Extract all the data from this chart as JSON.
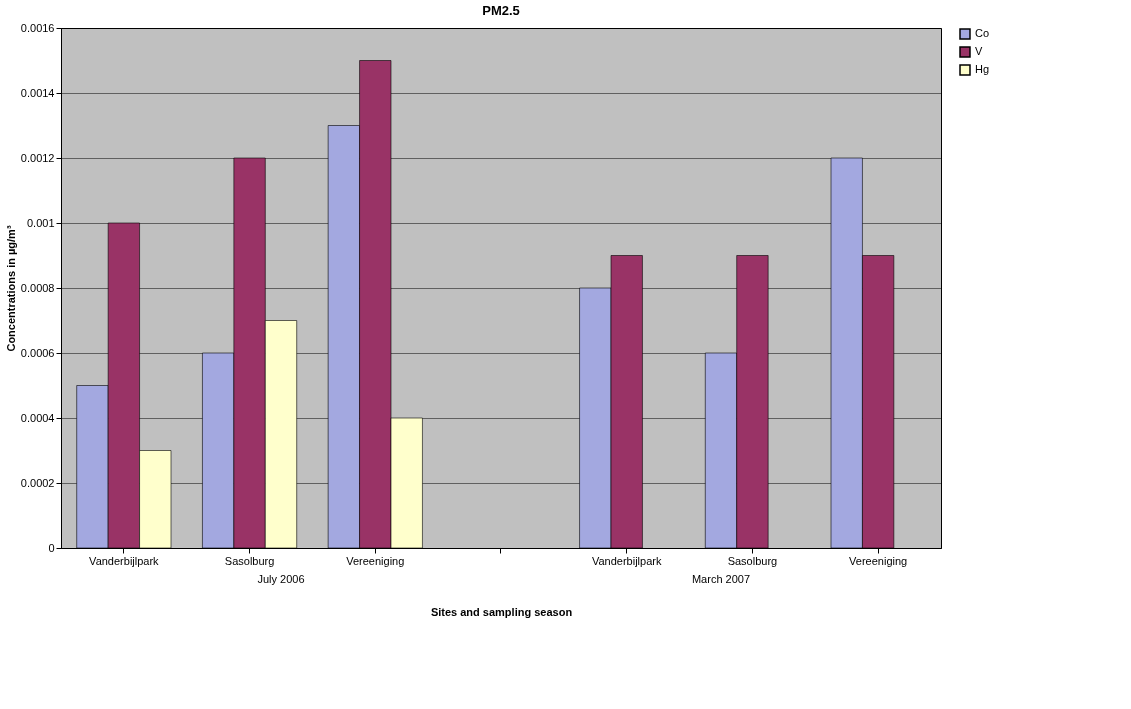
{
  "chart_data": {
    "type": "bar",
    "title": "PM2.5",
    "xlabel": "Sites and sampling season",
    "ylabel": "Concentrations in µg/m³",
    "categories": [
      "Vanderbijlpark",
      "Sasolburg",
      "Vereeniging",
      null,
      "Vanderbijlpark",
      "Sasolburg",
      "Vereeniging"
    ],
    "series": [
      {
        "name": "Co",
        "color": "#a3a8e0",
        "values": [
          0.0005,
          0.0006,
          0.0013,
          null,
          0.0008,
          0.0006,
          0.0012
        ]
      },
      {
        "name": "V",
        "color": "#993366",
        "values": [
          0.001,
          0.0012,
          0.0015,
          null,
          0.0009,
          0.0009,
          0.0009
        ]
      },
      {
        "name": "Hg",
        "color": "#ffffcc",
        "values": [
          0.0003,
          0.0007,
          0.0004,
          null,
          null,
          null,
          null
        ]
      }
    ],
    "ylim": [
      0,
      0.0016
    ],
    "yticks": [
      0,
      0.0002,
      0.0004,
      0.0006,
      0.0008,
      0.001,
      0.0012,
      0.0014,
      0.0016
    ],
    "grid": "y",
    "legend": "right",
    "annotations": [
      "July 2006",
      "March 2007"
    ]
  }
}
